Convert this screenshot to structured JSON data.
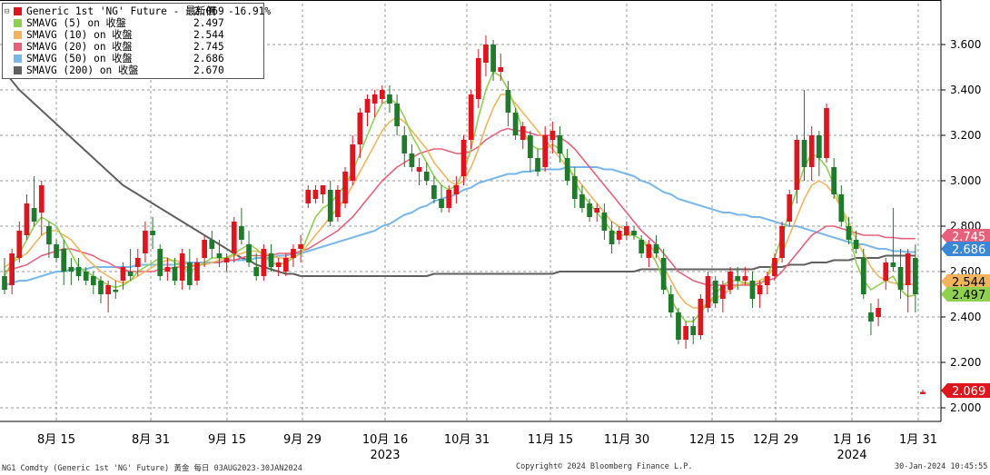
{
  "legend": [
    {
      "label": "Generic 1st 'NG' Future - 最新價",
      "value": "2.069",
      "change": "-16.91%",
      "color": "#e0141c"
    },
    {
      "label": "SMAVG (5)  on 收盤",
      "value": "2.497",
      "change": "",
      "color": "#8fd14f"
    },
    {
      "label": "SMAVG (10)  on 收盤",
      "value": "2.544",
      "change": "",
      "color": "#f2b45a"
    },
    {
      "label": "SMAVG (20)  on 收盤",
      "value": "2.745",
      "change": "",
      "color": "#e8607a"
    },
    {
      "label": "SMAVG (50)  on 收盤",
      "value": "2.686",
      "change": "",
      "color": "#7ab8ec"
    },
    {
      "label": "SMAVG (200)  on 收盤",
      "value": "2.670",
      "change": "",
      "color": "#606060"
    }
  ],
  "footer": {
    "left": "NG1 Comdty (Generic 1st 'NG' Future) 黃金  每日 03AUG2023-30JAN2024",
    "center": "Copyright© 2024 Bloomberg Finance L.P.",
    "right": "30-Jan-2024 10:45:55"
  },
  "chart_data": {
    "type": "candlestick",
    "ylim": [
      1.94,
      3.78
    ],
    "yticks": [
      "2.000",
      "2.200",
      "2.400",
      "2.600",
      "2.800",
      "3.000",
      "3.200",
      "3.400",
      "3.600"
    ],
    "xtick_labels": [
      "8月 15",
      "8月 31",
      "9月 15",
      "9月 29",
      "10月 16",
      "10月 31",
      "11月 15",
      "11月 30",
      "12月 15",
      "12月 29",
      "1月 16",
      "1月 31"
    ],
    "year_labels": [
      {
        "text": "2023",
        "under": "10月 16"
      },
      {
        "text": "2024",
        "under": "1月 16"
      }
    ],
    "grid": true,
    "legend_position": "top-left",
    "up_color": "#e0141c",
    "down_color": "#1f7a2b",
    "badges": [
      {
        "text": "2.745",
        "value": 2.745,
        "color": "#e8607a",
        "textcolor": "#fff"
      },
      {
        "text": "2.686",
        "value": 2.686,
        "color": "#3a87d8",
        "textcolor": "#fff"
      },
      {
        "text": "2.544",
        "value": 2.544,
        "color": "#f2b45a",
        "textcolor": "#000"
      },
      {
        "text": "2.497",
        "value": 2.497,
        "color": "#8fd14f",
        "textcolor": "#000"
      },
      {
        "text": "2.069",
        "value": 2.069,
        "color": "#e0141c",
        "textcolor": "#fff"
      }
    ],
    "candles": [
      [
        2.58,
        2.66,
        2.5,
        2.52
      ],
      [
        2.54,
        2.7,
        2.5,
        2.68
      ],
      [
        2.66,
        2.82,
        2.64,
        2.78
      ],
      [
        2.76,
        2.94,
        2.74,
        2.9
      ],
      [
        2.88,
        3.02,
        2.8,
        2.82
      ],
      [
        2.86,
        3.0,
        2.76,
        2.98
      ],
      [
        2.8,
        2.82,
        2.66,
        2.72
      ],
      [
        2.72,
        2.74,
        2.64,
        2.66
      ],
      [
        2.7,
        2.74,
        2.54,
        2.6
      ],
      [
        2.62,
        2.66,
        2.54,
        2.6
      ],
      [
        2.62,
        2.66,
        2.56,
        2.58
      ],
      [
        2.6,
        2.62,
        2.54,
        2.56
      ],
      [
        2.58,
        2.6,
        2.5,
        2.54
      ],
      [
        2.56,
        2.58,
        2.46,
        2.5
      ],
      [
        2.5,
        2.56,
        2.42,
        2.54
      ],
      [
        2.52,
        2.56,
        2.48,
        2.51
      ],
      [
        2.56,
        2.64,
        2.52,
        2.62
      ],
      [
        2.6,
        2.7,
        2.56,
        2.58
      ],
      [
        2.62,
        2.7,
        2.58,
        2.66
      ],
      [
        2.68,
        2.82,
        2.64,
        2.78
      ],
      [
        2.78,
        2.84,
        2.7,
        2.76
      ],
      [
        2.7,
        2.72,
        2.56,
        2.58
      ],
      [
        2.6,
        2.66,
        2.56,
        2.62
      ],
      [
        2.62,
        2.66,
        2.54,
        2.56
      ],
      [
        2.56,
        2.7,
        2.52,
        2.68
      ],
      [
        2.64,
        2.7,
        2.52,
        2.54
      ],
      [
        2.56,
        2.66,
        2.54,
        2.64
      ],
      [
        2.66,
        2.76,
        2.62,
        2.74
      ],
      [
        2.74,
        2.78,
        2.66,
        2.7
      ],
      [
        2.68,
        2.74,
        2.62,
        2.66
      ],
      [
        2.64,
        2.68,
        2.6,
        2.66
      ],
      [
        2.68,
        2.84,
        2.64,
        2.82
      ],
      [
        2.8,
        2.88,
        2.72,
        2.74
      ],
      [
        2.72,
        2.78,
        2.62,
        2.64
      ],
      [
        2.62,
        2.68,
        2.56,
        2.58
      ],
      [
        2.58,
        2.72,
        2.56,
        2.7
      ],
      [
        2.68,
        2.72,
        2.6,
        2.62
      ],
      [
        2.62,
        2.66,
        2.58,
        2.64
      ],
      [
        2.6,
        2.68,
        2.58,
        2.66
      ],
      [
        2.66,
        2.72,
        2.62,
        2.7
      ],
      [
        2.7,
        2.76,
        2.64,
        2.72
      ],
      [
        2.9,
        2.98,
        2.88,
        2.96
      ],
      [
        2.92,
        2.98,
        2.9,
        2.96
      ],
      [
        2.94,
        2.98,
        2.9,
        2.98
      ],
      [
        2.96,
        3.0,
        2.8,
        2.82
      ],
      [
        2.84,
        2.98,
        2.82,
        2.96
      ],
      [
        2.9,
        3.06,
        2.88,
        3.04
      ],
      [
        3.0,
        3.2,
        2.98,
        3.16
      ],
      [
        3.16,
        3.32,
        3.1,
        3.3
      ],
      [
        3.3,
        3.38,
        3.24,
        3.36
      ],
      [
        3.34,
        3.4,
        3.28,
        3.38
      ],
      [
        3.36,
        3.42,
        3.34,
        3.4
      ],
      [
        3.38,
        3.42,
        3.3,
        3.34
      ],
      [
        3.34,
        3.38,
        3.2,
        3.24
      ],
      [
        3.2,
        3.24,
        3.06,
        3.12
      ],
      [
        3.12,
        3.16,
        3.04,
        3.06
      ],
      [
        3.04,
        3.1,
        2.98,
        3.06
      ],
      [
        3.04,
        3.08,
        2.98,
        3.0
      ],
      [
        2.98,
        3.02,
        2.9,
        2.92
      ],
      [
        2.92,
        2.98,
        2.86,
        2.88
      ],
      [
        2.88,
        2.98,
        2.86,
        2.96
      ],
      [
        2.94,
        3.02,
        2.9,
        2.98
      ],
      [
        3.02,
        3.2,
        2.98,
        3.18
      ],
      [
        3.18,
        3.4,
        3.14,
        3.38
      ],
      [
        3.36,
        3.58,
        3.32,
        3.54
      ],
      [
        3.52,
        3.64,
        3.46,
        3.6
      ],
      [
        3.6,
        3.62,
        3.44,
        3.48
      ],
      [
        3.48,
        3.56,
        3.44,
        3.5
      ],
      [
        3.4,
        3.44,
        3.24,
        3.3
      ],
      [
        3.3,
        3.32,
        3.18,
        3.2
      ],
      [
        3.18,
        3.26,
        3.14,
        3.24
      ],
      [
        3.2,
        3.22,
        3.04,
        3.1
      ],
      [
        3.1,
        3.14,
        3.02,
        3.04
      ],
      [
        3.06,
        3.24,
        3.04,
        3.2
      ],
      [
        3.18,
        3.26,
        3.12,
        3.22
      ],
      [
        3.2,
        3.24,
        3.08,
        3.12
      ],
      [
        3.1,
        3.14,
        2.98,
        3.0
      ],
      [
        3.02,
        3.06,
        2.88,
        2.92
      ],
      [
        2.94,
        2.98,
        2.86,
        2.88
      ],
      [
        2.9,
        2.92,
        2.82,
        2.84
      ],
      [
        2.86,
        2.9,
        2.82,
        2.88
      ],
      [
        2.86,
        2.9,
        2.74,
        2.78
      ],
      [
        2.78,
        2.82,
        2.68,
        2.72
      ],
      [
        2.74,
        2.8,
        2.72,
        2.78
      ],
      [
        2.76,
        2.82,
        2.74,
        2.8
      ],
      [
        2.78,
        2.8,
        2.74,
        2.76
      ],
      [
        2.74,
        2.76,
        2.66,
        2.68
      ],
      [
        2.66,
        2.74,
        2.62,
        2.72
      ],
      [
        2.72,
        2.76,
        2.66,
        2.68
      ],
      [
        2.66,
        2.7,
        2.5,
        2.52
      ],
      [
        2.5,
        2.54,
        2.4,
        2.42
      ],
      [
        2.42,
        2.44,
        2.28,
        2.3
      ],
      [
        2.3,
        2.38,
        2.26,
        2.36
      ],
      [
        2.36,
        2.4,
        2.28,
        2.32
      ],
      [
        2.32,
        2.5,
        2.3,
        2.48
      ],
      [
        2.44,
        2.6,
        2.42,
        2.58
      ],
      [
        2.56,
        2.58,
        2.44,
        2.46
      ],
      [
        2.48,
        2.56,
        2.42,
        2.54
      ],
      [
        2.52,
        2.62,
        2.5,
        2.6
      ],
      [
        2.58,
        2.62,
        2.52,
        2.56
      ],
      [
        2.56,
        2.62,
        2.54,
        2.58
      ],
      [
        2.56,
        2.6,
        2.44,
        2.48
      ],
      [
        2.5,
        2.56,
        2.44,
        2.54
      ],
      [
        2.54,
        2.6,
        2.5,
        2.58
      ],
      [
        2.58,
        2.68,
        2.56,
        2.66
      ],
      [
        2.66,
        2.82,
        2.64,
        2.8
      ],
      [
        2.82,
        2.96,
        2.8,
        2.94
      ],
      [
        2.96,
        3.2,
        2.9,
        3.18
      ],
      [
        3.18,
        3.4,
        3.0,
        3.06
      ],
      [
        3.06,
        3.24,
        3.0,
        3.2
      ],
      [
        3.2,
        3.22,
        3.02,
        3.1
      ],
      [
        3.1,
        3.34,
        3.08,
        3.32
      ],
      [
        3.06,
        3.1,
        2.92,
        2.94
      ],
      [
        2.94,
        2.98,
        2.8,
        2.82
      ],
      [
        2.8,
        2.84,
        2.72,
        2.74
      ],
      [
        2.74,
        2.78,
        2.68,
        2.7
      ],
      [
        2.66,
        2.7,
        2.48,
        2.5
      ],
      [
        2.42,
        2.46,
        2.32,
        2.38
      ],
      [
        2.4,
        2.48,
        2.36,
        2.44
      ],
      [
        2.56,
        2.66,
        2.52,
        2.64
      ],
      [
        2.64,
        2.88,
        2.6,
        2.62
      ],
      [
        2.62,
        2.7,
        2.48,
        2.52
      ],
      [
        2.54,
        2.7,
        2.42,
        2.68
      ],
      [
        2.66,
        2.72,
        2.42,
        2.5
      ],
      [
        2.06,
        2.08,
        2.06,
        2.07
      ]
    ],
    "ma5": [
      2.58,
      2.64,
      2.68,
      2.74,
      2.8,
      2.84,
      2.82,
      2.8,
      2.74,
      2.68,
      2.62,
      2.6,
      2.58,
      2.56,
      2.54,
      2.53,
      2.54,
      2.56,
      2.6,
      2.62,
      2.64,
      2.66,
      2.66,
      2.64,
      2.62,
      2.6,
      2.62,
      2.64,
      2.66,
      2.66,
      2.66,
      2.68,
      2.7,
      2.72,
      2.7,
      2.67,
      2.64,
      2.63,
      2.64,
      2.66,
      2.68,
      2.76,
      2.84,
      2.88,
      2.9,
      2.94,
      2.98,
      3.04,
      3.12,
      3.2,
      3.28,
      3.34,
      3.36,
      3.34,
      3.28,
      3.2,
      3.14,
      3.08,
      3.02,
      2.98,
      2.96,
      2.98,
      3.04,
      3.14,
      3.28,
      3.4,
      3.48,
      3.46,
      3.4,
      3.32,
      3.22,
      3.16,
      3.14,
      3.14,
      3.16,
      3.14,
      3.08,
      3.0,
      2.94,
      2.9,
      2.86,
      2.82,
      2.78,
      2.76,
      2.76,
      2.76,
      2.74,
      2.7,
      2.64,
      2.56,
      2.48,
      2.42,
      2.38,
      2.38,
      2.42,
      2.46,
      2.5,
      2.54,
      2.56,
      2.56,
      2.55,
      2.54,
      2.54,
      2.58,
      2.66,
      2.76,
      2.86,
      2.96,
      3.06,
      3.12,
      3.1,
      3.06,
      2.98,
      2.88,
      2.78,
      2.64,
      2.56,
      2.52,
      2.54,
      2.56,
      2.58,
      2.52,
      2.49,
      2.497
    ],
    "ma10": [
      2.62,
      2.64,
      2.66,
      2.68,
      2.72,
      2.76,
      2.78,
      2.78,
      2.76,
      2.74,
      2.7,
      2.66,
      2.63,
      2.6,
      2.58,
      2.56,
      2.55,
      2.56,
      2.58,
      2.6,
      2.62,
      2.64,
      2.65,
      2.65,
      2.64,
      2.63,
      2.63,
      2.63,
      2.64,
      2.65,
      2.66,
      2.67,
      2.68,
      2.69,
      2.69,
      2.68,
      2.67,
      2.66,
      2.66,
      2.66,
      2.68,
      2.72,
      2.76,
      2.8,
      2.84,
      2.88,
      2.92,
      2.98,
      3.04,
      3.1,
      3.16,
      3.22,
      3.26,
      3.28,
      3.26,
      3.22,
      3.18,
      3.14,
      3.08,
      3.04,
      3.0,
      2.98,
      3.0,
      3.06,
      3.14,
      3.24,
      3.32,
      3.38,
      3.38,
      3.34,
      3.3,
      3.26,
      3.22,
      3.18,
      3.14,
      3.1,
      3.06,
      3.02,
      2.98,
      2.94,
      2.9,
      2.86,
      2.82,
      2.8,
      2.78,
      2.76,
      2.74,
      2.72,
      2.68,
      2.62,
      2.56,
      2.5,
      2.46,
      2.44,
      2.44,
      2.46,
      2.48,
      2.5,
      2.52,
      2.54,
      2.55,
      2.55,
      2.56,
      2.58,
      2.62,
      2.68,
      2.76,
      2.84,
      2.92,
      2.98,
      3.0,
      2.98,
      2.94,
      2.88,
      2.82,
      2.74,
      2.68,
      2.62,
      2.58,
      2.56,
      2.55,
      2.544,
      2.544,
      2.544
    ],
    "ma20": [
      2.6,
      2.61,
      2.62,
      2.63,
      2.65,
      2.67,
      2.68,
      2.69,
      2.7,
      2.7,
      2.69,
      2.68,
      2.67,
      2.65,
      2.64,
      2.62,
      2.61,
      2.6,
      2.6,
      2.6,
      2.6,
      2.61,
      2.61,
      2.62,
      2.62,
      2.62,
      2.63,
      2.63,
      2.64,
      2.64,
      2.65,
      2.65,
      2.66,
      2.67,
      2.67,
      2.67,
      2.67,
      2.68,
      2.68,
      2.68,
      2.69,
      2.7,
      2.72,
      2.74,
      2.76,
      2.78,
      2.81,
      2.84,
      2.88,
      2.92,
      2.96,
      3.0,
      3.03,
      3.06,
      3.08,
      3.1,
      3.12,
      3.13,
      3.14,
      3.14,
      3.13,
      3.12,
      3.12,
      3.13,
      3.15,
      3.18,
      3.2,
      3.22,
      3.23,
      3.22,
      3.22,
      3.21,
      3.2,
      3.2,
      3.2,
      3.19,
      3.17,
      3.14,
      3.1,
      3.06,
      3.02,
      2.98,
      2.94,
      2.9,
      2.86,
      2.82,
      2.78,
      2.75,
      2.72,
      2.68,
      2.64,
      2.6,
      2.58,
      2.56,
      2.55,
      2.54,
      2.54,
      2.54,
      2.54,
      2.54,
      2.54,
      2.54,
      2.55,
      2.56,
      2.57,
      2.6,
      2.64,
      2.68,
      2.72,
      2.76,
      2.78,
      2.8,
      2.8,
      2.79,
      2.78,
      2.77,
      2.76,
      2.76,
      2.76,
      2.75,
      2.75,
      2.745,
      2.745,
      2.745
    ],
    "ma50": [
      2.54,
      2.55,
      2.56,
      2.56,
      2.57,
      2.58,
      2.59,
      2.6,
      2.6,
      2.61,
      2.61,
      2.61,
      2.62,
      2.62,
      2.62,
      2.62,
      2.62,
      2.62,
      2.63,
      2.63,
      2.63,
      2.63,
      2.63,
      2.63,
      2.64,
      2.64,
      2.64,
      2.64,
      2.64,
      2.64,
      2.65,
      2.65,
      2.65,
      2.65,
      2.66,
      2.66,
      2.66,
      2.67,
      2.67,
      2.68,
      2.68,
      2.69,
      2.7,
      2.71,
      2.72,
      2.73,
      2.74,
      2.75,
      2.76,
      2.77,
      2.78,
      2.8,
      2.81,
      2.83,
      2.85,
      2.86,
      2.88,
      2.89,
      2.91,
      2.92,
      2.93,
      2.94,
      2.96,
      2.97,
      2.99,
      3.0,
      3.01,
      3.02,
      3.03,
      3.03,
      3.04,
      3.04,
      3.05,
      3.05,
      3.05,
      3.05,
      3.06,
      3.06,
      3.06,
      3.06,
      3.06,
      3.05,
      3.05,
      3.04,
      3.03,
      3.02,
      3.0,
      2.99,
      2.97,
      2.95,
      2.94,
      2.92,
      2.91,
      2.9,
      2.89,
      2.88,
      2.87,
      2.86,
      2.86,
      2.85,
      2.85,
      2.84,
      2.84,
      2.83,
      2.82,
      2.81,
      2.8,
      2.8,
      2.79,
      2.78,
      2.77,
      2.76,
      2.75,
      2.74,
      2.73,
      2.72,
      2.72,
      2.71,
      2.7,
      2.7,
      2.69,
      2.69,
      2.686,
      2.686
    ],
    "ma200": [
      3.48,
      3.44,
      3.4,
      3.37,
      3.34,
      3.31,
      3.28,
      3.25,
      3.22,
      3.19,
      3.16,
      3.13,
      3.1,
      3.07,
      3.04,
      3.01,
      2.98,
      2.96,
      2.94,
      2.92,
      2.9,
      2.88,
      2.86,
      2.84,
      2.82,
      2.8,
      2.78,
      2.76,
      2.74,
      2.72,
      2.7,
      2.68,
      2.66,
      2.65,
      2.63,
      2.62,
      2.61,
      2.6,
      2.59,
      2.59,
      2.58,
      2.58,
      2.58,
      2.58,
      2.58,
      2.58,
      2.58,
      2.58,
      2.58,
      2.58,
      2.58,
      2.58,
      2.58,
      2.58,
      2.58,
      2.58,
      2.58,
      2.58,
      2.59,
      2.59,
      2.59,
      2.59,
      2.59,
      2.59,
      2.59,
      2.59,
      2.59,
      2.59,
      2.59,
      2.59,
      2.59,
      2.59,
      2.59,
      2.59,
      2.59,
      2.6,
      2.6,
      2.6,
      2.6,
      2.6,
      2.6,
      2.6,
      2.6,
      2.6,
      2.6,
      2.6,
      2.61,
      2.61,
      2.61,
      2.61,
      2.61,
      2.61,
      2.61,
      2.61,
      2.61,
      2.61,
      2.61,
      2.61,
      2.61,
      2.61,
      2.61,
      2.61,
      2.62,
      2.62,
      2.62,
      2.62,
      2.63,
      2.63,
      2.63,
      2.64,
      2.64,
      2.64,
      2.65,
      2.65,
      2.65,
      2.66,
      2.66,
      2.66,
      2.66,
      2.67,
      2.67,
      2.67,
      2.67,
      2.67
    ]
  }
}
